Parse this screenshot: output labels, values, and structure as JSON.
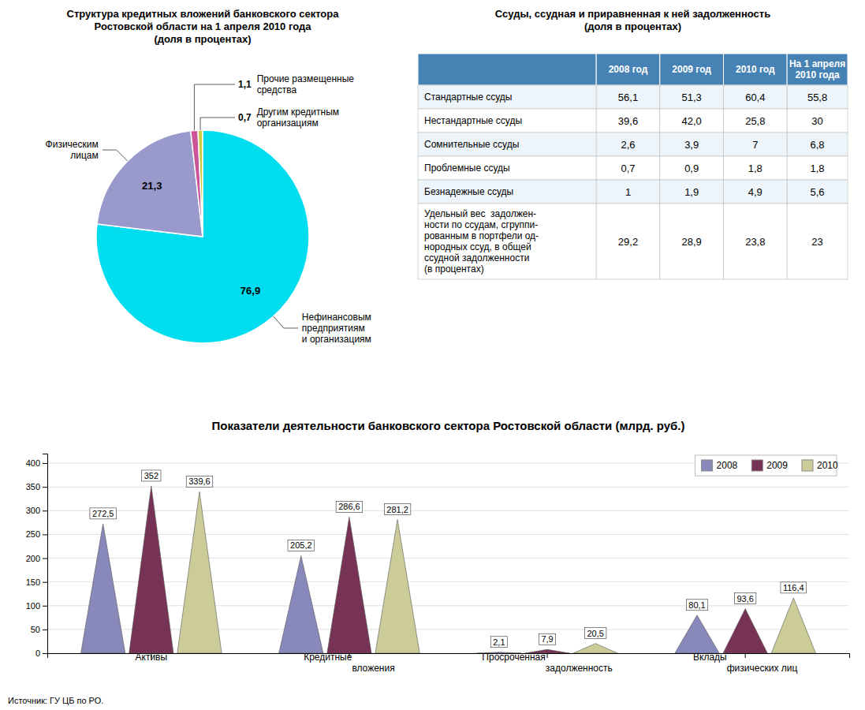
{
  "chart_data": [
    {
      "type": "pie",
      "title": "Структура кредитных вложений банковского сектора\nРостовской области на 1 апреля 2010 года\n(доля в процентах)",
      "categories": [
        "Нефинансовым\nпредприятиям\nи организациям",
        "Физическим\nлицам",
        "Прочие размещенные\nсредства",
        "Другим кредитным\nорганизациям"
      ],
      "values": [
        76.9,
        21.3,
        1.1,
        0.7
      ],
      "value_labels": [
        "76,9",
        "21,3",
        "1,1",
        "0,7"
      ],
      "colors": [
        "#00ddee",
        "#9999cc",
        "#cc5599",
        "#cccc44"
      ],
      "data_labels": true
    },
    {
      "type": "table",
      "title": "Ссуды, ссудная и приравненная к ней задолженность\n(доля в процентах)",
      "columns": [
        "2008 год",
        "2009 год",
        "2010 год",
        "На 1 апреля\n2010 года"
      ],
      "rows": [
        "Стандартные ссуды",
        "Нестандартные ссуды",
        "Сомнительные ссуды",
        "Проблемные ссуды",
        "Безнадежные ссуды",
        "Удельный вес  задолжен-\nности по ссудам, сгруппи-\nрованным в портфели од-\nнородных ссуд, в общей\nссудной задолженности\n(в процентах)"
      ],
      "values": [
        [
          56.1,
          51.3,
          60.4,
          55.8
        ],
        [
          39.6,
          42.0,
          25.8,
          30
        ],
        [
          2.6,
          3.9,
          7,
          6.8
        ],
        [
          0.7,
          0.9,
          1.8,
          1.8
        ],
        [
          1,
          1.9,
          4.9,
          5.6
        ],
        [
          29.2,
          28.9,
          23.8,
          23
        ]
      ],
      "value_labels": [
        [
          "56,1",
          "51,3",
          "60,4",
          "55,8"
        ],
        [
          "39,6",
          "42,0",
          "25,8",
          "30"
        ],
        [
          "2,6",
          "3,9",
          "7",
          "6,8"
        ],
        [
          "0,7",
          "0,9",
          "1,8",
          "1,8"
        ],
        [
          "1",
          "1,9",
          "4,9",
          "5,6"
        ],
        [
          "29,2",
          "28,9",
          "23,8",
          "23"
        ]
      ]
    },
    {
      "type": "bar",
      "title": "Показатели деятельности банковского сектора Ростовской области (млрд. руб.)",
      "categories": [
        "Активы",
        "Кредитные\nвложения",
        "Просроченная\nзадолженность",
        "Вклады\nфизических лиц"
      ],
      "series": [
        {
          "name": "2008",
          "color": "#8888bb",
          "values": [
            272.5,
            205.2,
            2.1,
            80.1
          ],
          "value_labels": [
            "272,5",
            "205,2",
            "2,1",
            "80,1"
          ]
        },
        {
          "name": "2009",
          "color": "#773355",
          "values": [
            352,
            286.6,
            7.9,
            93.6
          ],
          "value_labels": [
            "352",
            "286,6",
            "7,9",
            "93,6"
          ]
        },
        {
          "name": "2010",
          "color": "#cccc99",
          "values": [
            339.6,
            281.2,
            20.5,
            116.4
          ],
          "value_labels": [
            "339,6",
            "281,2",
            "20,5",
            "116,4"
          ]
        }
      ],
      "ylim": [
        0,
        420
      ],
      "yticks": [
        0,
        50,
        100,
        150,
        200,
        250,
        300,
        350,
        400
      ],
      "grid": true,
      "legend": "upper right",
      "data_labels": true,
      "source": "Источник: ГУ ЦБ по РО."
    }
  ]
}
